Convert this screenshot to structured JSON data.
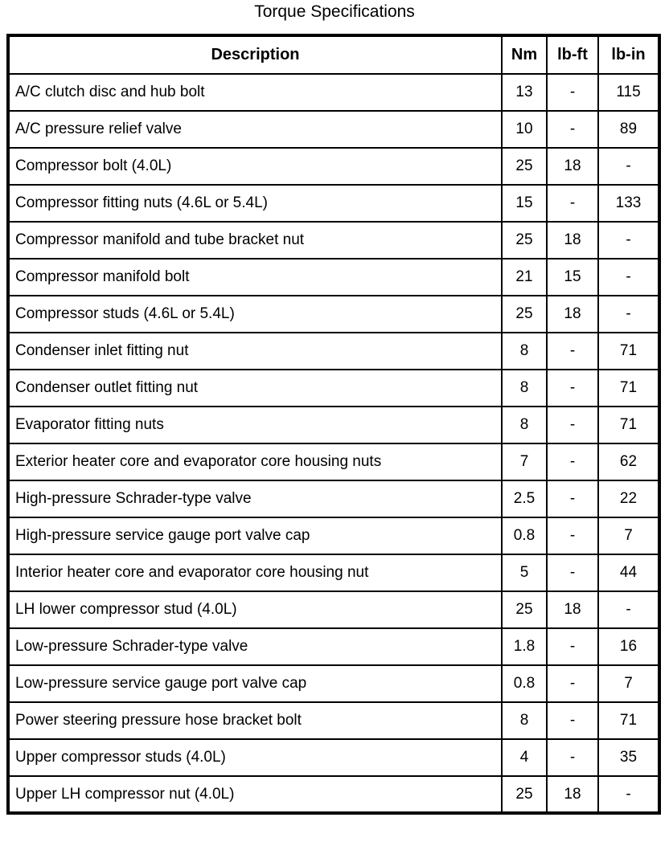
{
  "title": "Torque Specifications",
  "table": {
    "headers": [
      "Description",
      "Nm",
      "lb-ft",
      "lb-in"
    ],
    "rows": [
      [
        "A/C clutch disc and hub bolt",
        "13",
        "-",
        "115"
      ],
      [
        "A/C pressure relief valve",
        "10",
        "-",
        "89"
      ],
      [
        "Compressor bolt (4.0L)",
        "25",
        "18",
        "-"
      ],
      [
        "Compressor fitting nuts (4.6L or 5.4L)",
        "15",
        "-",
        "133"
      ],
      [
        "Compressor manifold and tube bracket nut",
        "25",
        "18",
        "-"
      ],
      [
        "Compressor manifold bolt",
        "21",
        "15",
        "-"
      ],
      [
        "Compressor studs (4.6L or 5.4L)",
        "25",
        "18",
        "-"
      ],
      [
        "Condenser inlet fitting nut",
        "8",
        "-",
        "71"
      ],
      [
        "Condenser outlet fitting nut",
        "8",
        "-",
        "71"
      ],
      [
        "Evaporator fitting nuts",
        "8",
        "-",
        "71"
      ],
      [
        "Exterior heater core and evaporator core housing nuts",
        "7",
        "-",
        "62"
      ],
      [
        "High-pressure Schrader-type valve",
        "2.5",
        "-",
        "22"
      ],
      [
        "High-pressure service gauge port valve cap",
        "0.8",
        "-",
        "7"
      ],
      [
        "Interior heater core and evaporator core housing nut",
        "5",
        "-",
        "44"
      ],
      [
        "LH lower compressor stud (4.0L)",
        "25",
        "18",
        "-"
      ],
      [
        "Low-pressure Schrader-type valve",
        "1.8",
        "-",
        "16"
      ],
      [
        "Low-pressure service gauge port valve cap",
        "0.8",
        "-",
        "7"
      ],
      [
        "Power steering pressure hose bracket bolt",
        "8",
        "-",
        "71"
      ],
      [
        "Upper compressor studs (4.0L)",
        "4",
        "-",
        "35"
      ],
      [
        "Upper LH compressor nut (4.0L)",
        "25",
        "18",
        "-"
      ]
    ]
  }
}
